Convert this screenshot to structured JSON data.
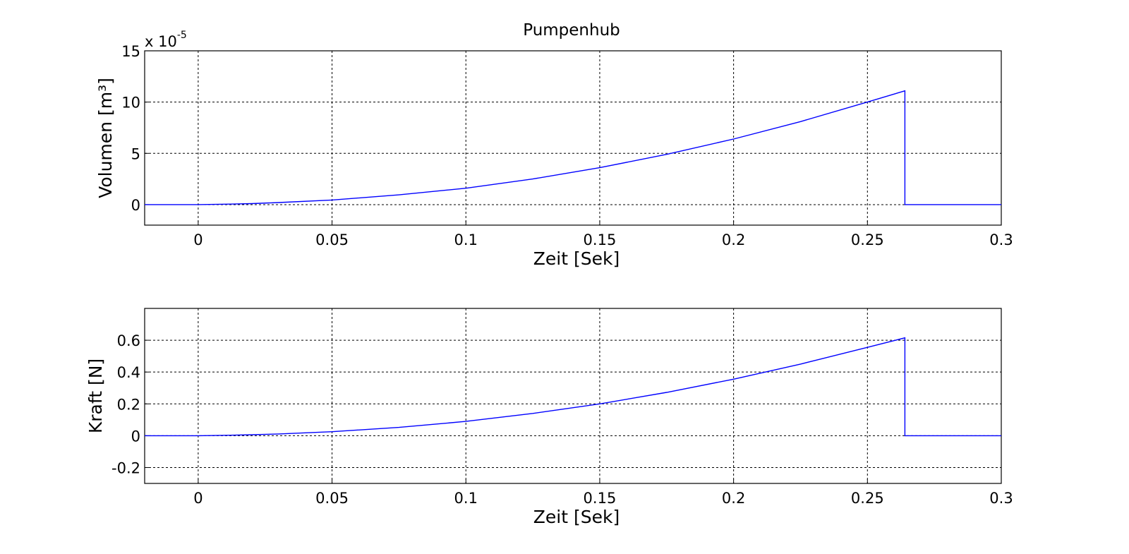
{
  "figure": {
    "title": "Pumpenhub"
  },
  "colors": {
    "series": "#0000ff",
    "background": "#ffffff",
    "axes": "#000000"
  },
  "chart_data": [
    {
      "type": "line",
      "title": "Pumpenhub",
      "xlabel": "Zeit [Sek]",
      "ylabel": "Volumen [m³]",
      "y_exponent_base": "x 10",
      "y_exponent_power": "-5",
      "y_scale_factor": 1e-05,
      "xlim": [
        -0.02,
        0.3
      ],
      "ylim": [
        -2,
        15
      ],
      "xticks": [
        0,
        0.05,
        0.1,
        0.15,
        0.2,
        0.25,
        0.3
      ],
      "xtick_labels": [
        "0",
        "0.05",
        "0.1",
        "0.15",
        "0.2",
        "0.25",
        "0.3"
      ],
      "yticks": [
        0,
        5,
        10,
        15
      ],
      "ytick_labels": [
        "0",
        "5",
        "10",
        "15"
      ],
      "grid": true,
      "series": [
        {
          "color": "#0000ff",
          "x": [
            -0.02,
            0.0,
            0.012,
            0.02,
            0.03,
            0.05,
            0.075,
            0.1,
            0.125,
            0.15,
            0.175,
            0.2,
            0.225,
            0.25,
            0.264,
            0.264,
            0.3
          ],
          "y": [
            0,
            0,
            0.05,
            0.1,
            0.2,
            0.45,
            0.95,
            1.6,
            2.5,
            3.6,
            4.9,
            6.4,
            8.1,
            10.0,
            11.1,
            0,
            0
          ]
        }
      ]
    },
    {
      "type": "line",
      "xlabel": "Zeit [Sek]",
      "ylabel": "Kraft [N]",
      "xlim": [
        -0.02,
        0.3
      ],
      "ylim": [
        -0.3,
        0.8
      ],
      "xticks": [
        0,
        0.05,
        0.1,
        0.15,
        0.2,
        0.25,
        0.3
      ],
      "xtick_labels": [
        "0",
        "0.05",
        "0.1",
        "0.15",
        "0.2",
        "0.25",
        "0.3"
      ],
      "yticks": [
        -0.2,
        0,
        0.2,
        0.4,
        0.6
      ],
      "ytick_labels": [
        "-0.2",
        "0",
        "0.2",
        "0.4",
        "0.6"
      ],
      "grid": true,
      "series": [
        {
          "color": "#0000ff",
          "x": [
            -0.02,
            0.0,
            0.012,
            0.02,
            0.03,
            0.05,
            0.075,
            0.1,
            0.125,
            0.15,
            0.175,
            0.2,
            0.225,
            0.25,
            0.264,
            0.264,
            0.3
          ],
          "y": [
            0,
            0,
            0.003,
            0.006,
            0.011,
            0.025,
            0.052,
            0.09,
            0.14,
            0.2,
            0.272,
            0.355,
            0.45,
            0.555,
            0.615,
            0,
            0
          ]
        }
      ]
    }
  ]
}
